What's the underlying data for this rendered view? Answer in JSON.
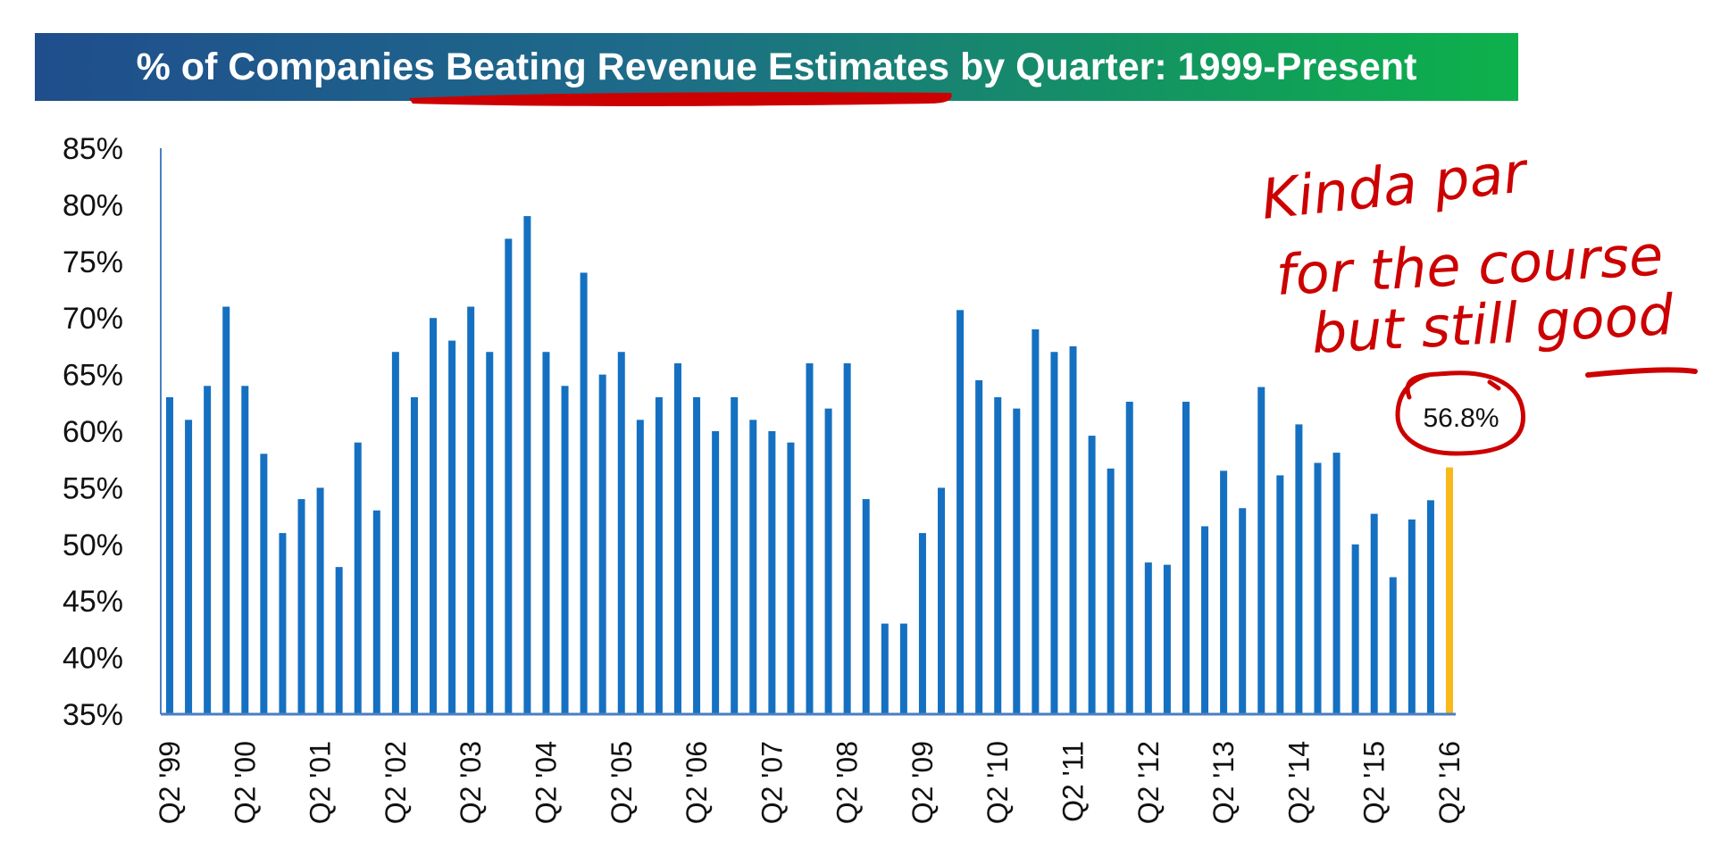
{
  "title": "% of Companies Beating Revenue Estimates by Quarter: 1999-Present",
  "annotation": {
    "handwritten_lines": [
      "Kinda par",
      "for the course",
      "but still good"
    ],
    "callout_value": "56.8%",
    "ink_color": "#cc0000"
  },
  "chart_data": {
    "type": "bar",
    "ylim": [
      35,
      85
    ],
    "yticks": [
      85,
      80,
      75,
      70,
      65,
      60,
      55,
      50,
      45,
      40,
      35
    ],
    "ytick_format": "%",
    "bar_color": "#1570c1",
    "highlight_color": "#f9b91a",
    "xtick_labels": [
      "Q2 '99",
      "Q2 '00",
      "Q2 '01",
      "Q2 '02",
      "Q2 '03",
      "Q2 '04",
      "Q2 '05",
      "Q2 '06",
      "Q2 '07",
      "Q2 '08",
      "Q2 '09",
      "Q2 '10",
      "Q2 '11",
      "Q2 '12",
      "Q2 '13",
      "Q2 '14",
      "Q2 '15",
      "Q2 '16"
    ],
    "xtick_every": 4,
    "categories": [
      "Q2 '99",
      "Q3 '99",
      "Q4 '99",
      "Q1 '00",
      "Q2 '00",
      "Q3 '00",
      "Q4 '00",
      "Q1 '01",
      "Q2 '01",
      "Q3 '01",
      "Q4 '01",
      "Q1 '02",
      "Q2 '02",
      "Q3 '02",
      "Q4 '02",
      "Q1 '03",
      "Q2 '03",
      "Q3 '03",
      "Q4 '03",
      "Q1 '04",
      "Q2 '04",
      "Q3 '04",
      "Q4 '04",
      "Q1 '05",
      "Q2 '05",
      "Q3 '05",
      "Q4 '05",
      "Q1 '06",
      "Q2 '06",
      "Q3 '06",
      "Q4 '06",
      "Q1 '07",
      "Q2 '07",
      "Q3 '07",
      "Q4 '07",
      "Q1 '08",
      "Q2 '08",
      "Q3 '08",
      "Q4 '08",
      "Q1 '09",
      "Q2 '09",
      "Q3 '09",
      "Q4 '09",
      "Q1 '10",
      "Q2 '10",
      "Q3 '10",
      "Q4 '10",
      "Q1 '11",
      "Q2 '11",
      "Q3 '11",
      "Q4 '11",
      "Q1 '12",
      "Q2 '12",
      "Q3 '12",
      "Q4 '12",
      "Q1 '13",
      "Q2 '13",
      "Q3 '13",
      "Q4 '13",
      "Q1 '14",
      "Q2 '14",
      "Q3 '14",
      "Q4 '14",
      "Q1 '15",
      "Q2 '15",
      "Q3 '15",
      "Q4 '15",
      "Q1 '16",
      "Q2 '16"
    ],
    "values": [
      63,
      61,
      64,
      71,
      64,
      58,
      51,
      54,
      55,
      48,
      59,
      53,
      67,
      63,
      70,
      68,
      71,
      67,
      77,
      79,
      67,
      64,
      74,
      65,
      67,
      61,
      63,
      66,
      63,
      60,
      63,
      61,
      60,
      59,
      66,
      62,
      66,
      54,
      43,
      43,
      51,
      55,
      70.7,
      64.5,
      63,
      62,
      69,
      67,
      67.5,
      59.6,
      56.7,
      62.6,
      48.4,
      48.2,
      62.6,
      51.6,
      56.5,
      53.2,
      63.9,
      56.1,
      60.6,
      57.2,
      58.1,
      50.0,
      52.7,
      47.1,
      52.2,
      53.9,
      56.8
    ],
    "highlight_index": 68
  }
}
